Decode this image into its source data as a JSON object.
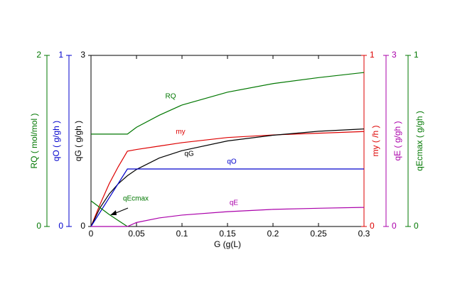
{
  "chart_data": {
    "type": "line",
    "xlabel": "G (g(L)",
    "xlim": [
      0,
      0.3
    ],
    "xticks": [
      0,
      0.05,
      0.1,
      0.15,
      0.2,
      0.25,
      0.3
    ],
    "x": [
      0,
      0.01,
      0.02,
      0.03,
      0.04,
      0.05,
      0.075,
      0.1,
      0.15,
      0.2,
      0.25,
      0.3
    ],
    "y_axes": [
      {
        "id": "qG",
        "label": "qG ( g/gh )",
        "color": "#000000",
        "side": "left",
        "ylim": [
          0,
          3
        ],
        "yticks": [
          0,
          3
        ]
      },
      {
        "id": "qO",
        "label": "qO ( g/gh )",
        "color": "#0000cc",
        "side": "left",
        "ylim": [
          0,
          1
        ],
        "yticks": [
          0,
          1
        ]
      },
      {
        "id": "RQ",
        "label": "RQ ( mol/mol )",
        "color": "#007700",
        "side": "left",
        "ylim": [
          0,
          2
        ],
        "yticks": [
          0,
          2
        ]
      },
      {
        "id": "my",
        "label": "my ( /h )",
        "color": "#dd0000",
        "side": "right",
        "ylim": [
          0,
          1
        ],
        "yticks": [
          0,
          1
        ]
      },
      {
        "id": "qE",
        "label": "qE ( g/gh )",
        "color": "#aa00aa",
        "side": "right",
        "ylim": [
          0,
          3
        ],
        "yticks": [
          0,
          3
        ]
      },
      {
        "id": "qEcmax",
        "label": "qEcmax ( g/gh )",
        "color": "#007700",
        "side": "right",
        "ylim": [
          0,
          1
        ],
        "yticks": [
          0,
          1
        ]
      }
    ],
    "series": [
      {
        "name": "RQ",
        "axis": "RQ",
        "color": "#007700",
        "values": [
          1.08,
          1.08,
          1.08,
          1.08,
          1.08,
          1.16,
          1.3,
          1.42,
          1.57,
          1.67,
          1.74,
          1.8
        ]
      },
      {
        "name": "my",
        "axis": "my",
        "color": "#dd0000",
        "values": [
          0,
          0.13,
          0.25,
          0.35,
          0.44,
          0.45,
          0.47,
          0.49,
          0.52,
          0.535,
          0.545,
          0.555
        ]
      },
      {
        "name": "qG",
        "axis": "qG",
        "color": "#000000",
        "values": [
          0,
          0.33,
          0.57,
          0.75,
          0.89,
          1.0,
          1.2,
          1.33,
          1.5,
          1.6,
          1.67,
          1.71
        ]
      },
      {
        "name": "qO",
        "axis": "qO",
        "color": "#0000cc",
        "values": [
          0,
          0.084,
          0.168,
          0.252,
          0.336,
          0.336,
          0.336,
          0.336,
          0.336,
          0.336,
          0.336,
          0.336
        ]
      },
      {
        "name": "qEcmax",
        "axis": "qEcmax",
        "color": "#007700",
        "values": [
          0.15,
          0.11,
          0.07,
          0.035,
          0,
          null,
          null,
          null,
          null,
          null,
          null,
          null
        ]
      },
      {
        "name": "qE",
        "axis": "qE",
        "color": "#aa00aa",
        "values": [
          0,
          0,
          0,
          0,
          0,
          0.07,
          0.15,
          0.2,
          0.26,
          0.3,
          0.32,
          0.335
        ]
      }
    ]
  }
}
